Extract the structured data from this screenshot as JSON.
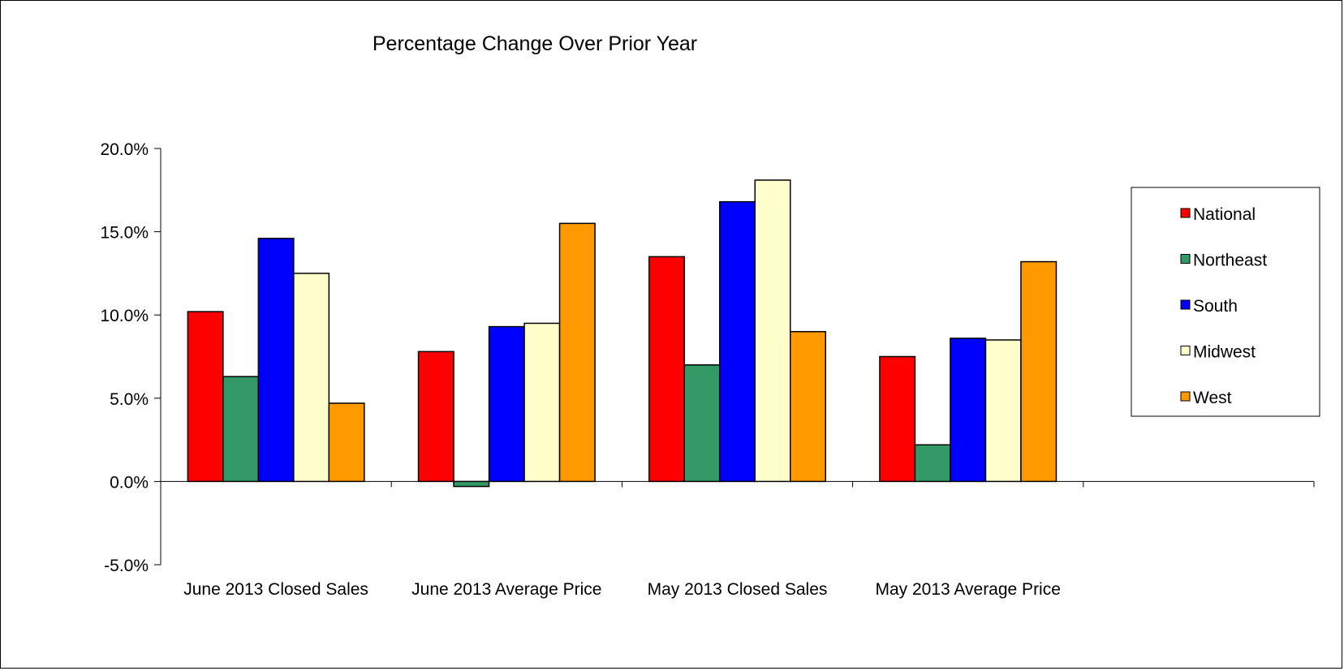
{
  "chart_data": {
    "type": "bar",
    "title": "Percentage Change Over Prior Year",
    "xlabel": "",
    "ylabel": "",
    "ylim": [
      -5,
      20
    ],
    "yticks": [
      -5,
      0,
      5,
      10,
      15,
      20
    ],
    "ytick_labels": [
      "-5.0%",
      "0.0%",
      "5.0%",
      "10.0%",
      "15.0%",
      "20.0%"
    ],
    "grid": false,
    "legend_position": "right",
    "categories": [
      "June 2013 Closed Sales",
      "June 2013 Average Price",
      "May 2013 Closed Sales",
      "May 2013 Average Price",
      ""
    ],
    "series": [
      {
        "name": "National",
        "color": "#ff0000",
        "values": [
          10.2,
          7.8,
          13.5,
          7.5,
          null
        ]
      },
      {
        "name": "Northeast",
        "color": "#339966",
        "values": [
          6.3,
          -0.3,
          7.0,
          2.2,
          null
        ]
      },
      {
        "name": "South",
        "color": "#0000ff",
        "values": [
          14.6,
          9.3,
          16.8,
          8.6,
          null
        ]
      },
      {
        "name": "Midwest",
        "color": "#ffffcc",
        "values": [
          12.5,
          9.5,
          18.1,
          8.5,
          null
        ]
      },
      {
        "name": "West",
        "color": "#ff9900",
        "values": [
          4.7,
          15.5,
          9.0,
          13.2,
          null
        ]
      }
    ]
  }
}
